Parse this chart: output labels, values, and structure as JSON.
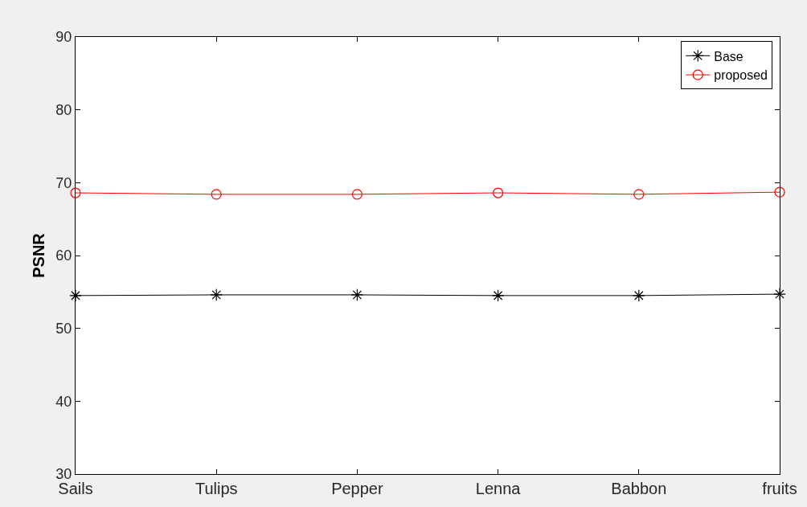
{
  "chart_data": {
    "type": "line",
    "ylabel": "PSNR",
    "categories": [
      "Sails",
      "Tulips",
      "Pepper",
      "Lenna",
      "Babbon",
      "fruits"
    ],
    "series": [
      {
        "name": "Base",
        "color": "#000000",
        "marker": "cross",
        "values": [
          54.5,
          54.6,
          54.6,
          54.5,
          54.5,
          54.7
        ]
      },
      {
        "name": "proposed",
        "color": "#ff0000",
        "marker": "circle",
        "values": [
          68.6,
          68.4,
          68.4,
          68.6,
          68.4,
          68.7
        ]
      }
    ],
    "ylim": [
      30,
      90
    ],
    "yticks": [
      30,
      40,
      50,
      60,
      70,
      80,
      90
    ],
    "legend": "top right",
    "line_style": "solid"
  }
}
